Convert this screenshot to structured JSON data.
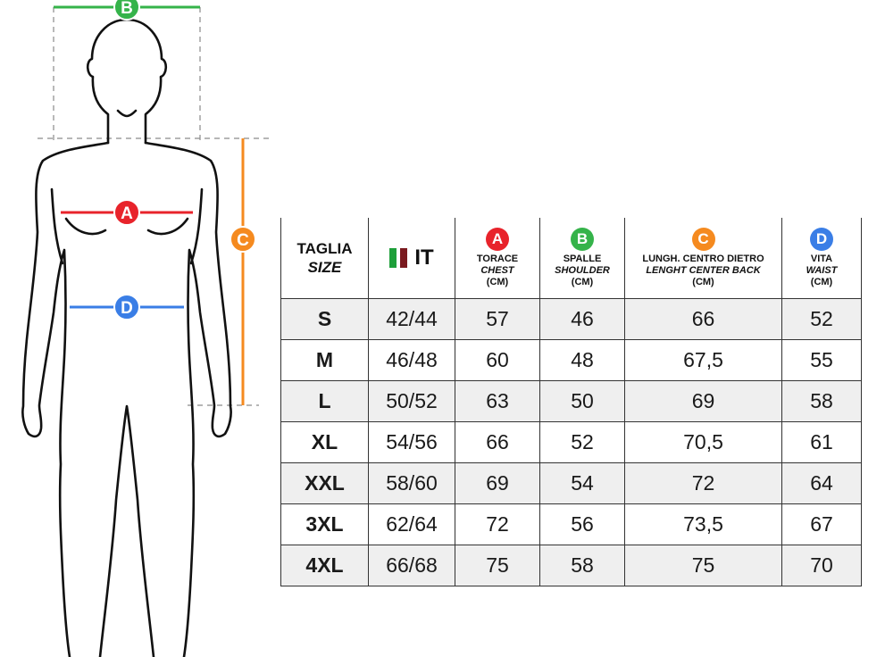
{
  "colors": {
    "A": "#e8232b",
    "B": "#35b34a",
    "C": "#f58a1f",
    "D": "#3a7ee6",
    "guide": "#8a8a8a",
    "outline": "#111111"
  },
  "diagram": {
    "labels": {
      "A": "A",
      "B": "B",
      "C": "C",
      "D": "D"
    }
  },
  "table": {
    "size_header": {
      "it": "TAGLIA",
      "en": "SIZE"
    },
    "country_header": {
      "flag_icon": "italy-flag-icon",
      "label": "IT"
    },
    "measures": [
      {
        "letter": "A",
        "it": "TORACE",
        "en": "CHEST",
        "unit": "(CM)"
      },
      {
        "letter": "B",
        "it": "SPALLE",
        "en": "SHOULDER",
        "unit": "(CM)"
      },
      {
        "letter": "C",
        "it": "LUNGH. CENTRO DIETRO",
        "en": "LENGHT CENTER BACK",
        "unit": "(CM)"
      },
      {
        "letter": "D",
        "it": "VITA",
        "en": "WAIST",
        "unit": "(CM)"
      }
    ],
    "rows": [
      {
        "size": "S",
        "it": "42/44",
        "A": "57",
        "B": "46",
        "C": "66",
        "D": "52"
      },
      {
        "size": "M",
        "it": "46/48",
        "A": "60",
        "B": "48",
        "C": "67,5",
        "D": "55"
      },
      {
        "size": "L",
        "it": "50/52",
        "A": "63",
        "B": "50",
        "C": "69",
        "D": "58"
      },
      {
        "size": "XL",
        "it": "54/56",
        "A": "66",
        "B": "52",
        "C": "70,5",
        "D": "61"
      },
      {
        "size": "XXL",
        "it": "58/60",
        "A": "69",
        "B": "54",
        "C": "72",
        "D": "64"
      },
      {
        "size": "3XL",
        "it": "62/64",
        "A": "72",
        "B": "56",
        "C": "73,5",
        "D": "67"
      },
      {
        "size": "4XL",
        "it": "66/68",
        "A": "75",
        "B": "58",
        "C": "75",
        "D": "70"
      }
    ]
  }
}
